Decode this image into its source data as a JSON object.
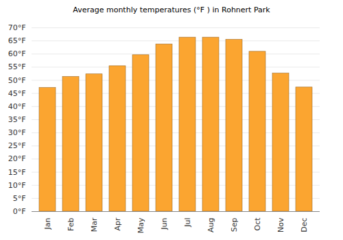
{
  "chart_data": {
    "type": "bar",
    "title": "Average monthly temperatures (°F ) in Rohnert Park",
    "categories": [
      "Jan",
      "Feb",
      "Mar",
      "Apr",
      "May",
      "Jun",
      "Jul",
      "Aug",
      "Sep",
      "Oct",
      "Nov",
      "Dec"
    ],
    "values": [
      47.1,
      51.3,
      52.3,
      55.4,
      59.6,
      63.7,
      66.3,
      66.3,
      65.5,
      60.9,
      52.6,
      47.3
    ],
    "color": "#fba530",
    "ylim": [
      0,
      70
    ],
    "yticks": [
      {
        "value": 0,
        "label": "0°F"
      },
      {
        "value": 5,
        "label": "5°F"
      },
      {
        "value": 10,
        "label": "10°F"
      },
      {
        "value": 15,
        "label": "15°F"
      },
      {
        "value": 20,
        "label": "20°F"
      },
      {
        "value": 25,
        "label": "25°F"
      },
      {
        "value": 30,
        "label": "30°F"
      },
      {
        "value": 35,
        "label": "35°F"
      },
      {
        "value": 40,
        "label": "40°F"
      },
      {
        "value": 45,
        "label": "45°F"
      },
      {
        "value": 50,
        "label": "50°F"
      },
      {
        "value": 55,
        "label": "55°F"
      },
      {
        "value": 60,
        "label": "60°F"
      },
      {
        "value": 65,
        "label": "65°F"
      },
      {
        "value": 70,
        "label": "70°F"
      }
    ],
    "grid": true
  }
}
